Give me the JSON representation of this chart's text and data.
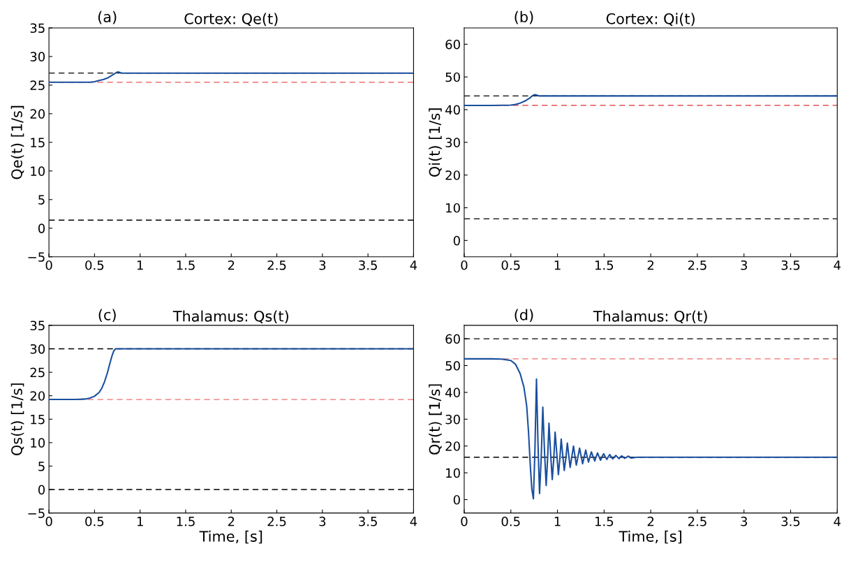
{
  "chart_data": [
    {
      "type": "line",
      "title": "Cortex: Qe(t)",
      "annotations": [
        "(a)"
      ],
      "ylabel": "Qe(t) [1/s]",
      "xlim": [
        0,
        4
      ],
      "xticks": [
        0,
        0.5,
        1,
        1.5,
        2,
        2.5,
        3,
        3.5,
        4
      ],
      "ylim": [
        -5,
        35
      ],
      "yticks": [
        {
          "value": -5,
          "label": "−5"
        },
        0,
        5,
        10,
        15,
        20,
        25,
        30,
        35
      ],
      "grid": false,
      "legend": false,
      "series": [
        {
          "color": "#1a4f9f",
          "x": [
            0,
            0.3,
            0.45,
            0.5,
            0.55,
            0.6,
            0.65,
            0.7,
            0.74,
            0.76,
            0.8,
            1,
            2,
            3,
            4
          ],
          "values": [
            25.5,
            25.5,
            25.5,
            25.6,
            25.8,
            26.0,
            26.3,
            26.8,
            27.2,
            27.3,
            27.1,
            27.1,
            27.1,
            27.1,
            27.1
          ]
        }
      ],
      "ref_lines": [
        {
          "axis": "y",
          "value": 27.1,
          "color": "#000000",
          "line_style": "dashed"
        },
        {
          "axis": "y",
          "value": 25.5,
          "color": "#f07070",
          "line_style": "dashed"
        },
        {
          "axis": "y",
          "value": 1.4,
          "color": "#000000",
          "line_style": "dashed"
        }
      ]
    },
    {
      "type": "line",
      "title": "Cortex: Qi(t)",
      "annotations": [
        "(b)"
      ],
      "ylabel": "Qi(t) [1/s]",
      "xlim": [
        0,
        4
      ],
      "xticks": [
        0,
        0.5,
        1,
        1.5,
        2,
        2.5,
        3,
        3.5,
        4
      ],
      "ylim": [
        -5,
        65
      ],
      "yticks": [
        0,
        10,
        20,
        30,
        40,
        50,
        60
      ],
      "grid": false,
      "legend": false,
      "series": [
        {
          "color": "#1a4f9f",
          "x": [
            0,
            0.3,
            0.5,
            0.55,
            0.6,
            0.65,
            0.7,
            0.74,
            0.76,
            0.8,
            1,
            2,
            3,
            4
          ],
          "values": [
            41.3,
            41.3,
            41.4,
            41.6,
            42.0,
            42.6,
            43.5,
            44.4,
            44.6,
            44.2,
            44.2,
            44.2,
            44.2,
            44.2
          ]
        }
      ],
      "ref_lines": [
        {
          "axis": "y",
          "value": 44.2,
          "color": "#000000",
          "line_style": "dashed"
        },
        {
          "axis": "y",
          "value": 41.3,
          "color": "#e03030",
          "line_style": "dashed"
        },
        {
          "axis": "y",
          "value": 6.6,
          "color": "#000000",
          "line_style": "dashed"
        }
      ]
    },
    {
      "type": "line",
      "title": "Thalamus: Qs(t)",
      "annotations": [
        "(c)"
      ],
      "xlabel": "Time, [s]",
      "ylabel": "Qs(t) [1/s]",
      "xlim": [
        0,
        4
      ],
      "xticks": [
        0,
        0.5,
        1,
        1.5,
        2,
        2.5,
        3,
        3.5,
        4
      ],
      "ylim": [
        -5,
        35
      ],
      "yticks": [
        {
          "value": -5,
          "label": "−5"
        },
        0,
        5,
        10,
        15,
        20,
        25,
        30,
        35
      ],
      "grid": false,
      "legend": false,
      "series": [
        {
          "color": "#1a4f9f",
          "x": [
            0,
            0.3,
            0.4,
            0.45,
            0.5,
            0.55,
            0.58,
            0.61,
            0.64,
            0.67,
            0.69,
            0.71,
            0.73,
            0.75,
            0.8,
            1,
            2,
            3,
            4
          ],
          "values": [
            19.2,
            19.2,
            19.3,
            19.5,
            19.9,
            20.7,
            21.6,
            23.0,
            24.8,
            27.0,
            28.4,
            29.5,
            30,
            30,
            30,
            30,
            30,
            30,
            30
          ]
        }
      ],
      "ref_lines": [
        {
          "axis": "y",
          "value": 30,
          "color": "#000000",
          "line_style": "dashed"
        },
        {
          "axis": "y",
          "value": 19.2,
          "color": "#f07070",
          "line_style": "dashed"
        },
        {
          "axis": "y",
          "value": 0,
          "color": "#000000",
          "line_style": "dashed"
        }
      ]
    },
    {
      "type": "line",
      "title": "Thalamus: Qr(t)",
      "annotations": [
        "(d)"
      ],
      "xlabel": "Time, [s]",
      "ylabel": "Qr(t) [1/s]",
      "xlim": [
        0,
        4
      ],
      "xticks": [
        0,
        0.5,
        1,
        1.5,
        2,
        2.5,
        3,
        3.5,
        4
      ],
      "ylim": [
        -5,
        65
      ],
      "yticks": [
        0,
        10,
        20,
        30,
        40,
        50,
        60
      ],
      "grid": false,
      "legend": false,
      "series": [
        {
          "color": "#1a4f9f",
          "x": [
            0,
            0.3,
            0.4,
            0.5,
            0.55,
            0.6,
            0.64,
            0.67,
            0.69,
            0.71,
            0.725,
            0.742,
            0.758,
            0.775,
            0.792,
            0.808,
            0.825,
            0.843,
            0.861,
            0.879,
            0.894,
            0.909,
            0.927,
            0.944,
            0.96,
            0.975,
            0.993,
            1.01,
            1.025,
            1.04,
            1.057,
            1.073,
            1.09,
            1.106,
            1.121,
            1.136,
            1.154,
            1.172,
            1.187,
            1.202,
            1.22,
            1.237,
            1.254,
            1.27,
            1.287,
            1.303,
            1.318,
            1.333,
            1.348,
            1.364,
            1.382,
            1.4,
            1.415,
            1.43,
            1.446,
            1.462,
            1.478,
            1.495,
            1.512,
            1.53,
            1.545,
            1.56,
            1.577,
            1.593,
            1.61,
            1.626,
            1.643,
            1.66,
            1.675,
            1.69,
            1.705,
            1.72,
            1.74,
            1.76,
            1.775,
            1.79,
            1.85,
            2,
            3,
            4
          ],
          "values": [
            52.5,
            52.5,
            52.4,
            51.9,
            50.5,
            47.0,
            42.0,
            35.0,
            25.0,
            12.0,
            4.0,
            0.3,
            18.0,
            45.0,
            20.0,
            2.3,
            15.0,
            34.5,
            18.0,
            5.3,
            15.0,
            28.5,
            17.0,
            7.5,
            15.0,
            25.2,
            17.0,
            9.3,
            15.0,
            22.6,
            16.5,
            10.9,
            15.5,
            21.1,
            16.5,
            12.0,
            16.0,
            20.0,
            16.3,
            12.9,
            16.0,
            19.2,
            16.2,
            13.4,
            16.0,
            18.5,
            16.1,
            14.0,
            16.0,
            17.8,
            16.0,
            14.4,
            16.0,
            17.4,
            16.0,
            14.7,
            16.0,
            17.1,
            16.0,
            15.0,
            16.0,
            16.8,
            16.0,
            15.2,
            15.9,
            16.5,
            15.9,
            15.3,
            15.9,
            16.3,
            15.9,
            15.4,
            15.8,
            16.2,
            15.9,
            15.5,
            15.8,
            15.8,
            15.8,
            15.8
          ]
        }
      ],
      "ref_lines": [
        {
          "axis": "y",
          "value": 60,
          "color": "#000000",
          "line_style": "dashed"
        },
        {
          "axis": "y",
          "value": 52.5,
          "color": "#f07070",
          "line_style": "dashed"
        },
        {
          "axis": "y",
          "value": 15.8,
          "color": "#000000",
          "line_style": "dashed"
        }
      ]
    }
  ]
}
